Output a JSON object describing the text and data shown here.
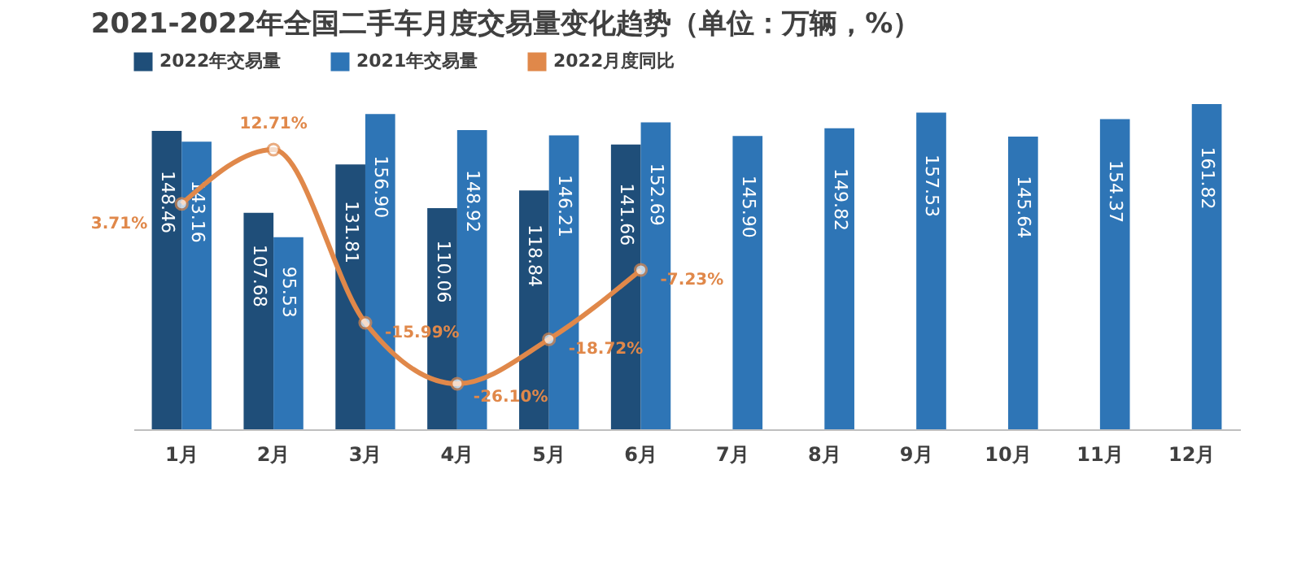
{
  "chart_data": {
    "type": "bar",
    "title": "2021-2022年全国二手车月度交易量变化趋势（单位：万辆，%）",
    "categories": [
      "1月",
      "2月",
      "3月",
      "4月",
      "5月",
      "6月",
      "7月",
      "8月",
      "9月",
      "10月",
      "11月",
      "12月"
    ],
    "series": [
      {
        "name": "2022年交易量",
        "type": "bar",
        "color": "#1f4e79",
        "values": [
          148.46,
          107.68,
          131.81,
          110.06,
          118.84,
          141.66,
          null,
          null,
          null,
          null,
          null,
          null
        ],
        "value_labels": [
          "148.46",
          "107.68",
          "131.81",
          "110.06",
          "118.84",
          "141.66",
          null,
          null,
          null,
          null,
          null,
          null
        ]
      },
      {
        "name": "2021年交易量",
        "type": "bar",
        "color": "#2e75b6",
        "values": [
          143.16,
          95.53,
          156.9,
          148.92,
          146.21,
          152.69,
          145.9,
          149.82,
          157.53,
          145.64,
          154.37,
          161.82
        ],
        "value_labels": [
          "143.16",
          "95.53",
          "156.90",
          "148.92",
          "146.21",
          "152.69",
          "145.90",
          "149.82",
          "157.53",
          "145.64",
          "154.37",
          "161.82"
        ]
      },
      {
        "name": "2022月度同比",
        "type": "line",
        "axis": "y2",
        "color": "#e0884a",
        "values": [
          3.71,
          12.71,
          -15.99,
          -26.1,
          -18.72,
          -7.23,
          null,
          null,
          null,
          null,
          null,
          null
        ],
        "value_labels": [
          "3.71%",
          "12.71%",
          "-15.99%",
          "-26.10%",
          "-18.72%",
          "-7.23%",
          null,
          null,
          null,
          null,
          null,
          null
        ]
      }
    ],
    "tick_labels": "x",
    "grid": false,
    "legend": "top",
    "marker": "circle",
    "line_style": "solid"
  }
}
